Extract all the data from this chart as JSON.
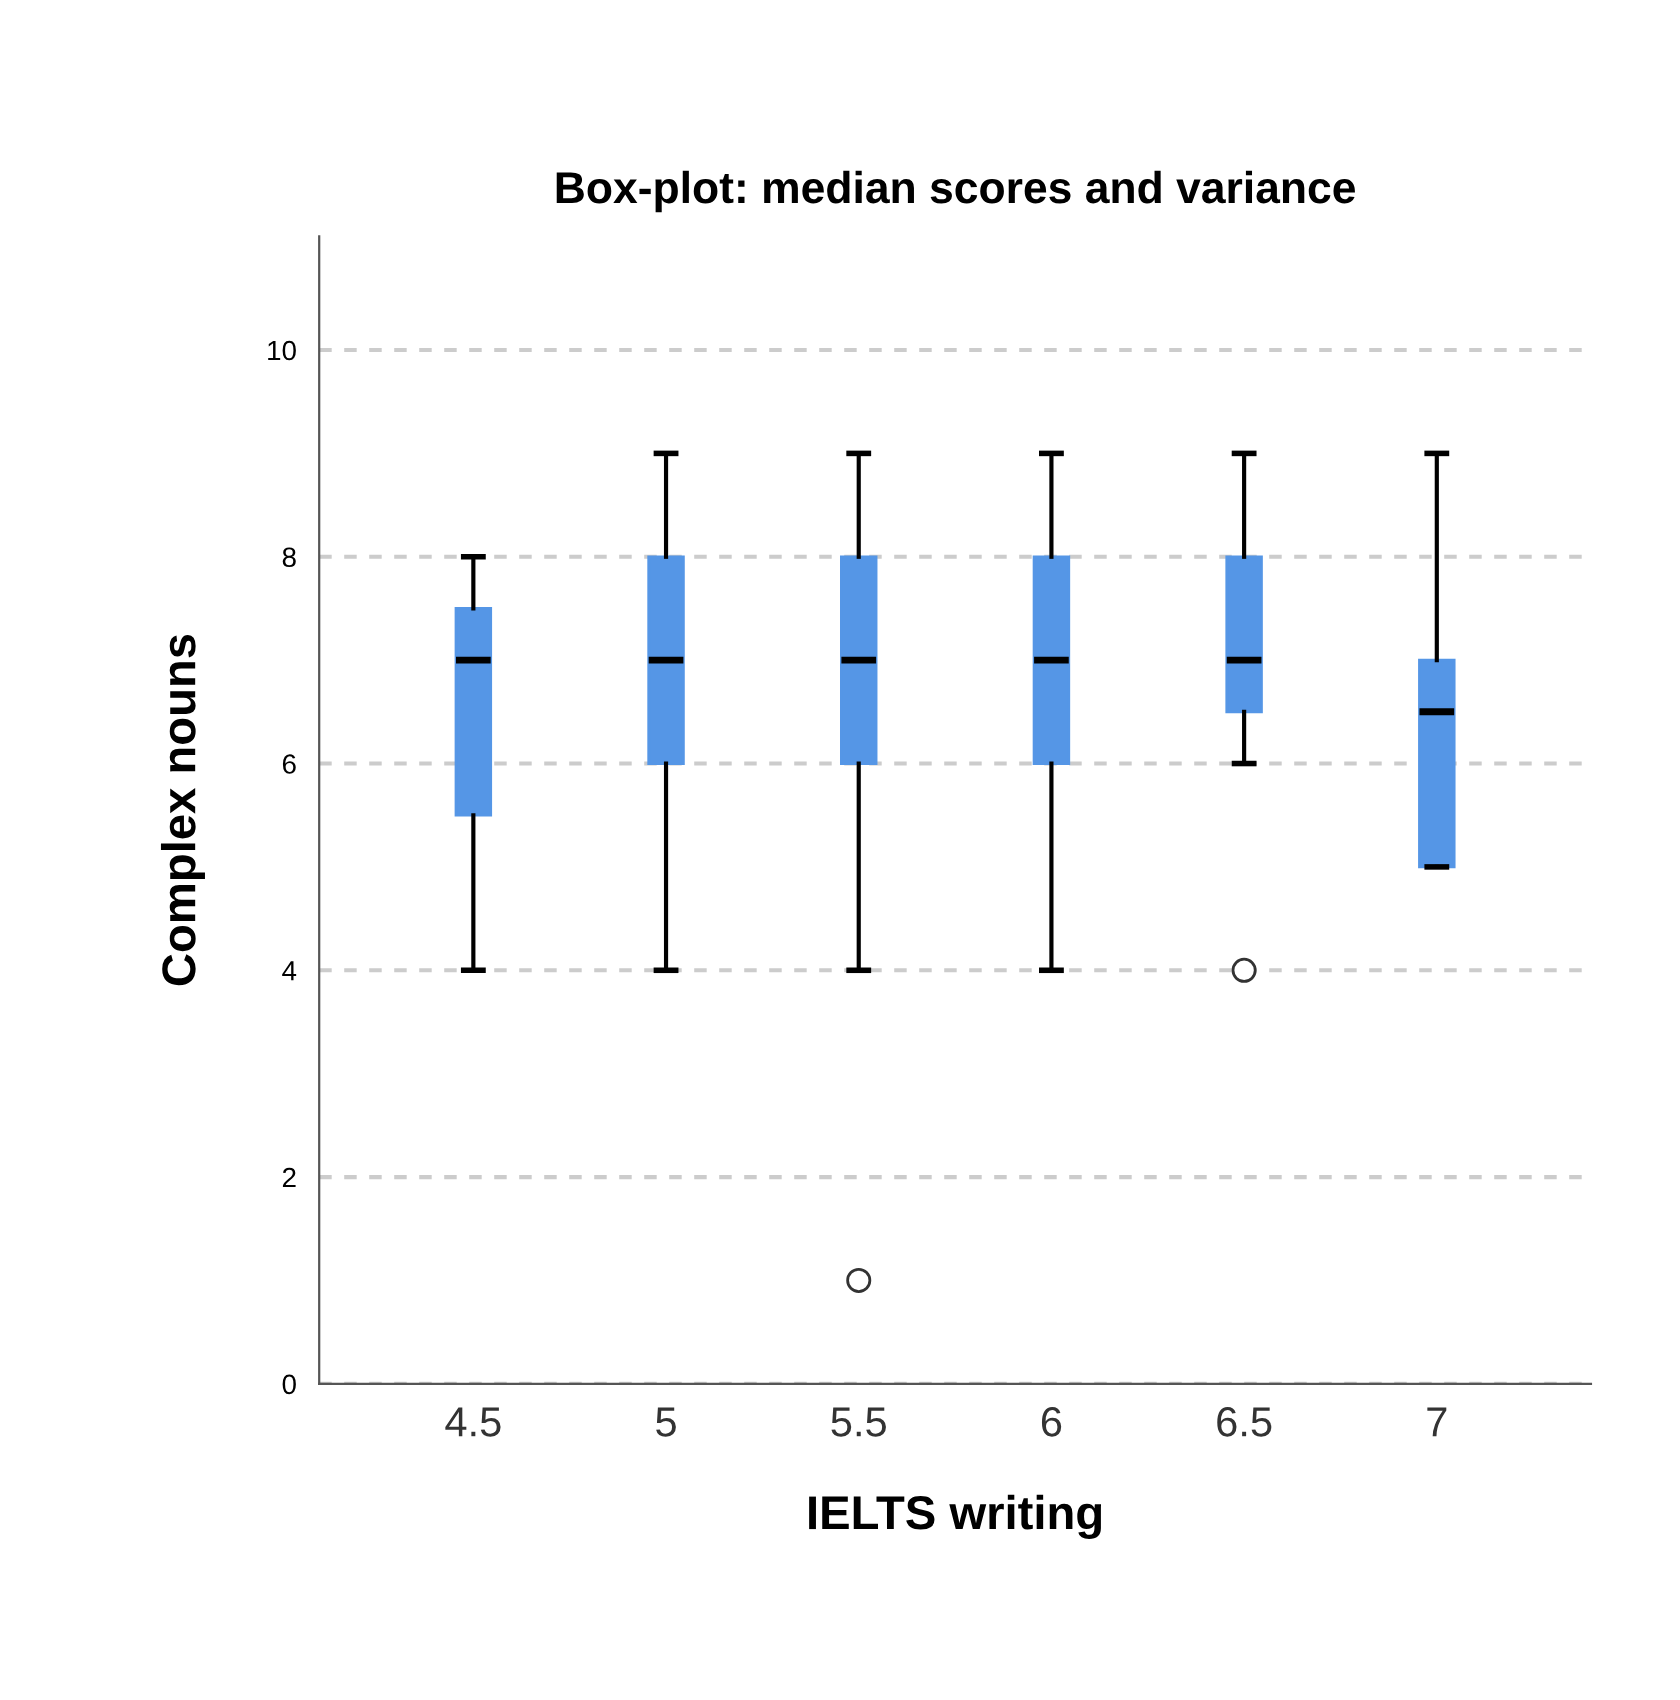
{
  "chart_data": {
    "type": "box",
    "title": "Box-plot: median scores and variance",
    "xlabel": "IELTS writing",
    "ylabel": "Complex nouns",
    "categories": [
      "4.5",
      "5",
      "5.5",
      "6",
      "6.5",
      "7"
    ],
    "boxes": [
      {
        "low": 4,
        "q1": 5.5,
        "median": 7,
        "q3": 7.5,
        "high": 8
      },
      {
        "low": 4,
        "q1": 6,
        "median": 7,
        "q3": 8,
        "high": 9
      },
      {
        "low": 4,
        "q1": 6,
        "median": 7,
        "q3": 8,
        "high": 9,
        "outliers": [
          1
        ]
      },
      {
        "low": 4,
        "q1": 6,
        "median": 7,
        "q3": 8,
        "high": 9
      },
      {
        "low": 6,
        "q1": 6.5,
        "median": 7,
        "q3": 8,
        "high": 9,
        "outliers": [
          4
        ]
      },
      {
        "low": 5,
        "q1": 5,
        "median": 6.5,
        "q3": 7,
        "high": 9
      }
    ],
    "color": "#5596e6",
    "ylim": [
      0,
      11.1
    ],
    "yticks": [
      0,
      2,
      4,
      6,
      8,
      10
    ],
    "grid": "y"
  }
}
